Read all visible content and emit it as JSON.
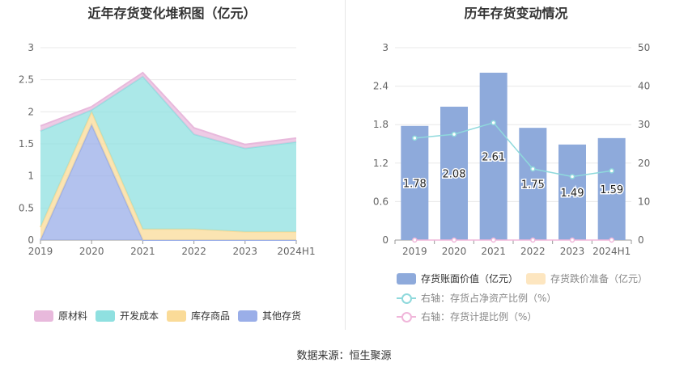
{
  "titles": {
    "left": "近年存货变化堆积图（亿元）",
    "right": "历年存货变动情况"
  },
  "source": "数据来源：恒生聚源",
  "colors": {
    "raw": "#e8b9dc",
    "dev": "#8fe0e0",
    "goods": "#fadb98",
    "other": "#9aaee8",
    "bar": "#8eaadb",
    "reserve": "#fde6c0",
    "ratio": "#8fd9dc",
    "provision": "#f0b6da"
  },
  "chart_data": [
    {
      "type": "area",
      "stacked": true,
      "categories": [
        "2019",
        "2020",
        "2021",
        "2022",
        "2023",
        "2024H1"
      ],
      "ylim": [
        0,
        3
      ],
      "yticks": [
        "0",
        "0.5",
        "1",
        "1.5",
        "2",
        "2.5",
        "3"
      ],
      "grid": true,
      "legend_position": "bottom",
      "series": [
        {
          "name": "其他存货",
          "key": "other",
          "values": [
            0.0,
            1.8,
            0.0,
            0.0,
            0.0,
            0.0
          ]
        },
        {
          "name": "库存商品",
          "key": "goods",
          "values": [
            0.2,
            0.2,
            0.17,
            0.17,
            0.13,
            0.13
          ]
        },
        {
          "name": "开发成本",
          "key": "dev",
          "values": [
            1.5,
            0.03,
            2.38,
            1.48,
            1.3,
            1.4
          ]
        },
        {
          "name": "原材料",
          "key": "raw",
          "values": [
            0.08,
            0.05,
            0.06,
            0.1,
            0.06,
            0.06
          ]
        }
      ],
      "legend_order": [
        "raw",
        "dev",
        "goods",
        "other"
      ]
    },
    {
      "type": "bar",
      "categories": [
        "2019",
        "2020",
        "2021",
        "2022",
        "2023",
        "2024H1"
      ],
      "ylim": [
        0,
        3
      ],
      "yticks": [
        "0",
        "0.6",
        "1.2",
        "1.8",
        "2.4",
        "3"
      ],
      "y2lim": [
        0,
        50
      ],
      "y2ticks": [
        "0",
        "10",
        "20",
        "30",
        "40",
        "50"
      ],
      "grid": true,
      "legend_position": "bottom",
      "series": [
        {
          "name": "存货账面价值（亿元）",
          "key": "bar",
          "type": "bar",
          "axis": "left",
          "values": [
            1.78,
            2.08,
            2.61,
            1.75,
            1.49,
            1.59
          ],
          "labels": [
            "1.78",
            "2.08",
            "2.61",
            "1.75",
            "1.49",
            "1.59"
          ]
        },
        {
          "name": "存货跌价准备（亿元）",
          "key": "reserve",
          "type": "bar",
          "axis": "left",
          "values": [
            0,
            0,
            0,
            0,
            0,
            0
          ]
        },
        {
          "name": "右轴：存货占净资产比例（%）",
          "key": "ratio",
          "type": "line",
          "axis": "right",
          "values": [
            26.5,
            27.5,
            30.5,
            18.5,
            16.5,
            18.0
          ]
        },
        {
          "name": "右轴：存货计提比例（%）",
          "key": "provision",
          "type": "line",
          "axis": "right",
          "values": [
            0,
            0,
            0,
            0,
            0,
            0
          ]
        }
      ]
    }
  ]
}
